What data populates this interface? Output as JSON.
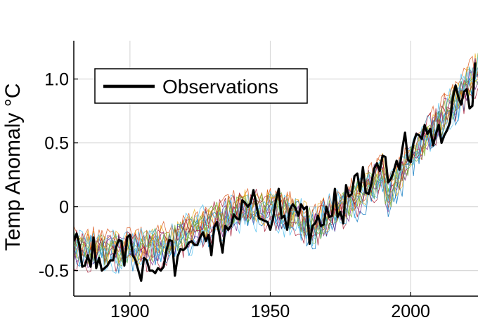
{
  "chart_data": {
    "type": "line",
    "title": "",
    "xlabel": "",
    "ylabel": "Temp Anomaly °C",
    "xlim": [
      1880,
      2024
    ],
    "ylim": [
      -0.7,
      1.3
    ],
    "x_ticks": [
      1900,
      1950,
      2000
    ],
    "x_tick_labels": [
      "1900",
      "1950",
      "2000"
    ],
    "y_ticks": [
      -0.5,
      0,
      0.5,
      1.0
    ],
    "y_tick_labels": [
      "-0.5",
      "0",
      "0.5",
      "1.0"
    ],
    "grid": true,
    "legend": {
      "position": "top-left",
      "entries": [
        "Observations"
      ]
    },
    "colors": {
      "observations": "#000000",
      "ensemble": [
        "#0072BD",
        "#D95319",
        "#EDB120",
        "#7E2F8E",
        "#77AC30",
        "#4DBEEE",
        "#A2142F",
        "#0072BD",
        "#D95319",
        "#EDB120",
        "#7E2F8E",
        "#77AC30",
        "#4DBEEE",
        "#A2142F",
        "#77AC30",
        "#4DBEEE"
      ]
    },
    "ensemble_count": 16,
    "ensemble_trend": [
      [
        1880,
        -0.33
      ],
      [
        1900,
        -0.35
      ],
      [
        1910,
        -0.32
      ],
      [
        1920,
        -0.22
      ],
      [
        1930,
        -0.12
      ],
      [
        1940,
        -0.02
      ],
      [
        1950,
        -0.03
      ],
      [
        1960,
        -0.08
      ],
      [
        1965,
        -0.18
      ],
      [
        1970,
        -0.08
      ],
      [
        1980,
        0.05
      ],
      [
        1990,
        0.25
      ],
      [
        1992,
        0.05
      ],
      [
        2000,
        0.4
      ],
      [
        2010,
        0.65
      ],
      [
        2024,
        1.05
      ]
    ],
    "series": [
      {
        "name": "Observations",
        "x": [
          1880,
          1881,
          1882,
          1883,
          1884,
          1885,
          1886,
          1887,
          1888,
          1889,
          1890,
          1891,
          1892,
          1893,
          1894,
          1895,
          1896,
          1897,
          1898,
          1899,
          1900,
          1901,
          1902,
          1903,
          1904,
          1905,
          1906,
          1907,
          1908,
          1909,
          1910,
          1911,
          1912,
          1913,
          1914,
          1915,
          1916,
          1917,
          1918,
          1919,
          1920,
          1921,
          1922,
          1923,
          1924,
          1925,
          1926,
          1927,
          1928,
          1929,
          1930,
          1931,
          1932,
          1933,
          1934,
          1935,
          1936,
          1937,
          1938,
          1939,
          1940,
          1941,
          1942,
          1943,
          1944,
          1945,
          1946,
          1947,
          1948,
          1949,
          1950,
          1951,
          1952,
          1953,
          1954,
          1955,
          1956,
          1957,
          1958,
          1959,
          1960,
          1961,
          1962,
          1963,
          1964,
          1965,
          1966,
          1967,
          1968,
          1969,
          1970,
          1971,
          1972,
          1973,
          1974,
          1975,
          1976,
          1977,
          1978,
          1979,
          1980,
          1981,
          1982,
          1983,
          1984,
          1985,
          1986,
          1987,
          1988,
          1989,
          1990,
          1991,
          1992,
          1993,
          1994,
          1995,
          1996,
          1997,
          1998,
          1999,
          2000,
          2001,
          2002,
          2003,
          2004,
          2005,
          2006,
          2007,
          2008,
          2009,
          2010,
          2011,
          2012,
          2013,
          2014,
          2015,
          2016,
          2017,
          2018,
          2019,
          2020,
          2021,
          2022,
          2023
        ],
        "y": [
          -0.27,
          -0.21,
          -0.3,
          -0.47,
          -0.46,
          -0.38,
          -0.47,
          -0.24,
          -0.48,
          -0.4,
          -0.5,
          -0.48,
          -0.46,
          -0.42,
          -0.42,
          -0.32,
          -0.26,
          -0.27,
          -0.46,
          -0.24,
          -0.22,
          -0.38,
          -0.42,
          -0.5,
          -0.58,
          -0.4,
          -0.42,
          -0.5,
          -0.5,
          -0.52,
          -0.48,
          -0.5,
          -0.47,
          -0.34,
          -0.26,
          -0.27,
          -0.54,
          -0.39,
          -0.33,
          -0.34,
          -0.32,
          -0.28,
          -0.27,
          -0.3,
          -0.3,
          -0.24,
          -0.2,
          -0.27,
          -0.22,
          -0.38,
          -0.16,
          -0.12,
          -0.23,
          -0.36,
          -0.15,
          -0.18,
          -0.15,
          -0.06,
          -0.09,
          -0.1,
          0.05,
          0.03,
          0.0,
          0.03,
          0.13,
          0.02,
          -0.09,
          -0.1,
          -0.11,
          -0.12,
          -0.18,
          -0.09,
          0.05,
          0.14,
          -0.09,
          -0.07,
          -0.18,
          -0.02,
          0.02,
          -0.01,
          -0.07,
          0.02,
          -0.02,
          0.0,
          -0.29,
          -0.15,
          -0.13,
          -0.07,
          -0.15,
          -0.14,
          0.0,
          -0.08,
          -0.07,
          0.14,
          -0.08,
          -0.04,
          -0.13,
          0.17,
          0.08,
          0.1,
          0.24,
          0.26,
          0.12,
          0.31,
          0.11,
          0.1,
          0.18,
          0.3,
          0.34,
          0.28,
          0.4,
          0.39,
          0.19,
          0.22,
          0.28,
          0.36,
          0.29,
          0.45,
          0.58,
          0.37,
          0.35,
          0.5,
          0.57,
          0.56,
          0.53,
          0.64,
          0.57,
          0.61,
          0.48,
          0.57,
          0.64,
          0.5,
          0.56,
          0.6,
          0.66,
          0.85,
          0.95,
          0.86,
          0.8,
          0.9,
          0.92,
          0.77,
          0.79,
          1.13
        ]
      }
    ]
  }
}
